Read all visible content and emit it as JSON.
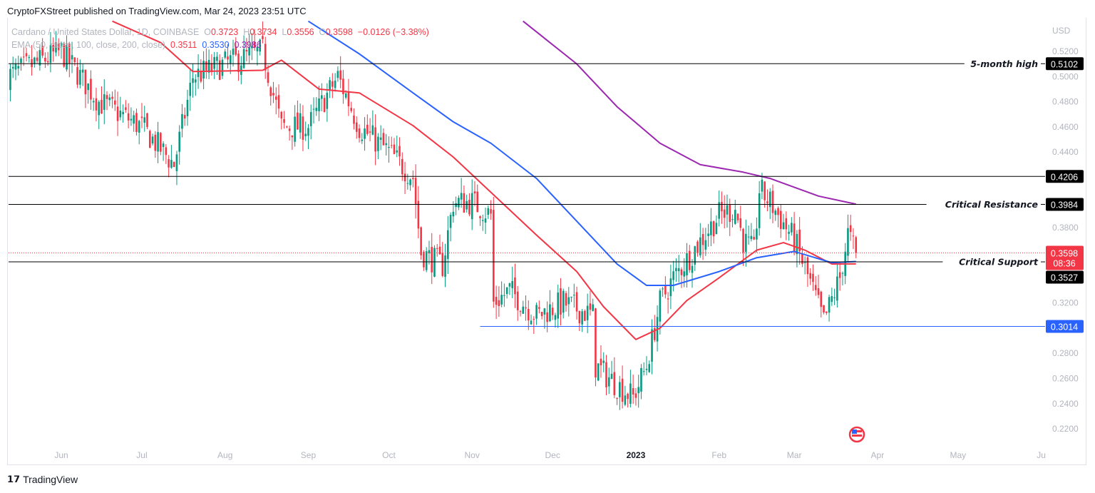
{
  "header": {
    "published": "CryptoFXStreet published on TradingView.com, Mar 24, 2023 23:51 UTC"
  },
  "legend": {
    "symbol": "Cardano / United States Dollar, 1D, COINBASE",
    "o_label": "O",
    "o": "0.3723",
    "h_label": "H",
    "h": "0.3734",
    "l_label": "L",
    "l": "0.3556",
    "c_label": "C",
    "c": "0.3598",
    "change": "−0.0126 (−3.38%)",
    "ema_label": "EMA (50, close, 100, close, 200, close)",
    "ema50": "0.3511",
    "ema100": "0.3530",
    "ema200": "0.3986"
  },
  "footer": {
    "logo": "TradingView"
  },
  "chart_data": {
    "type": "candlestick",
    "currency": "USD",
    "ylim": [
      0.21,
      0.535
    ],
    "y_ticks": [
      "0.5200",
      "0.5000",
      "0.4800",
      "0.4600",
      "0.4400",
      "0.3800",
      "0.3200",
      "0.2800",
      "0.2600",
      "0.2400",
      "0.2200"
    ],
    "x_ticks": [
      {
        "label": "Jun",
        "date": "2022-06-01"
      },
      {
        "label": "Jul",
        "date": "2022-07-01"
      },
      {
        "label": "Aug",
        "date": "2022-08-01"
      },
      {
        "label": "Sep",
        "date": "2022-09-01"
      },
      {
        "label": "Oct",
        "date": "2022-10-01"
      },
      {
        "label": "Nov",
        "date": "2022-11-01"
      },
      {
        "label": "Dec",
        "date": "2022-12-01"
      },
      {
        "label": "2023",
        "date": "2023-01-01"
      },
      {
        "label": "Feb",
        "date": "2023-02-01"
      },
      {
        "label": "Mar",
        "date": "2023-03-01"
      },
      {
        "label": "Apr",
        "date": "2023-04-01"
      },
      {
        "label": "May",
        "date": "2023-05-01"
      },
      {
        "label": "Ju",
        "date": "2023-06-01"
      }
    ],
    "close_path": [
      [
        "2022-05-12",
        0.5
      ],
      [
        "2022-06-01",
        0.52
      ],
      [
        "2022-06-15",
        0.48
      ],
      [
        "2022-07-01",
        0.46
      ],
      [
        "2022-07-13",
        0.43
      ],
      [
        "2022-07-20",
        0.5
      ],
      [
        "2022-08-01",
        0.51
      ],
      [
        "2022-08-15",
        0.52
      ],
      [
        "2022-08-22",
        0.46
      ],
      [
        "2022-09-01",
        0.46
      ],
      [
        "2022-09-12",
        0.5
      ],
      [
        "2022-09-20",
        0.46
      ],
      [
        "2022-10-01",
        0.44
      ],
      [
        "2022-10-10",
        0.42
      ],
      [
        "2022-10-13",
        0.36
      ],
      [
        "2022-10-21",
        0.35
      ],
      [
        "2022-10-25",
        0.4
      ],
      [
        "2022-11-01",
        0.4
      ],
      [
        "2022-11-08",
        0.39
      ],
      [
        "2022-11-09",
        0.32
      ],
      [
        "2022-11-15",
        0.33
      ],
      [
        "2022-11-25",
        0.31
      ],
      [
        "2022-12-05",
        0.32
      ],
      [
        "2022-12-16",
        0.31
      ],
      [
        "2022-12-17",
        0.27
      ],
      [
        "2022-12-25",
        0.255
      ],
      [
        "2022-12-31",
        0.245
      ],
      [
        "2023-01-05",
        0.27
      ],
      [
        "2023-01-10",
        0.32
      ],
      [
        "2023-01-15",
        0.34
      ],
      [
        "2023-01-22",
        0.36
      ],
      [
        "2023-02-01",
        0.39
      ],
      [
        "2023-02-07",
        0.395
      ],
      [
        "2023-02-10",
        0.37
      ],
      [
        "2023-02-14",
        0.36
      ],
      [
        "2023-02-16",
        0.41
      ],
      [
        "2023-02-20",
        0.4
      ],
      [
        "2023-03-01",
        0.37
      ],
      [
        "2023-03-08",
        0.33
      ],
      [
        "2023-03-12",
        0.305
      ],
      [
        "2023-03-18",
        0.34
      ],
      [
        "2023-03-21",
        0.375
      ],
      [
        "2023-03-24",
        0.3598
      ]
    ],
    "series": [
      {
        "name": "EMA 50",
        "color": "#f23645",
        "points": [
          [
            "2022-06-20",
            0.544
          ],
          [
            "2022-07-08",
            0.527
          ],
          [
            "2022-07-20",
            0.504
          ],
          [
            "2022-08-15",
            0.505
          ],
          [
            "2022-08-22",
            0.513
          ],
          [
            "2022-09-05",
            0.49
          ],
          [
            "2022-09-20",
            0.487
          ],
          [
            "2022-10-10",
            0.461
          ],
          [
            "2022-10-25",
            0.436
          ],
          [
            "2022-11-08",
            0.408
          ],
          [
            "2022-11-25",
            0.374
          ],
          [
            "2022-12-10",
            0.345
          ],
          [
            "2022-12-20",
            0.317
          ],
          [
            "2023-01-01",
            0.291
          ],
          [
            "2023-01-10",
            0.3
          ],
          [
            "2023-01-20",
            0.322
          ],
          [
            "2023-02-01",
            0.34
          ],
          [
            "2023-02-15",
            0.362
          ],
          [
            "2023-02-25",
            0.368
          ],
          [
            "2023-03-05",
            0.362
          ],
          [
            "2023-03-15",
            0.351
          ],
          [
            "2023-03-24",
            0.3511
          ]
        ]
      },
      {
        "name": "EMA 100",
        "color": "#2962ff",
        "points": [
          [
            "2022-09-01",
            0.544
          ],
          [
            "2022-09-20",
            0.518
          ],
          [
            "2022-10-10",
            0.487
          ],
          [
            "2022-10-25",
            0.464
          ],
          [
            "2022-11-08",
            0.447
          ],
          [
            "2022-11-25",
            0.419
          ],
          [
            "2022-12-10",
            0.385
          ],
          [
            "2022-12-25",
            0.351
          ],
          [
            "2023-01-05",
            0.334
          ],
          [
            "2023-01-15",
            0.334
          ],
          [
            "2023-02-01",
            0.345
          ],
          [
            "2023-02-15",
            0.356
          ],
          [
            "2023-03-01",
            0.361
          ],
          [
            "2023-03-15",
            0.352
          ],
          [
            "2023-03-24",
            0.353
          ]
        ]
      },
      {
        "name": "EMA 200",
        "color": "#9c27b0",
        "points": [
          [
            "2022-11-20",
            0.544
          ],
          [
            "2022-12-10",
            0.51
          ],
          [
            "2022-12-25",
            0.476
          ],
          [
            "2023-01-10",
            0.447
          ],
          [
            "2023-01-25",
            0.43
          ],
          [
            "2023-02-10",
            0.424
          ],
          [
            "2023-02-20",
            0.419
          ],
          [
            "2023-03-10",
            0.405
          ],
          [
            "2023-03-24",
            0.3986
          ]
        ]
      }
    ],
    "levels": [
      {
        "label": "5-month high",
        "value": "0.5102",
        "color": "#000000"
      },
      {
        "label": "",
        "value": "0.4206",
        "color": "#000000"
      },
      {
        "label": "Critical Resistance",
        "value": "0.3984",
        "color": "#000000"
      },
      {
        "label": "Critical Support",
        "value": "0.3527",
        "color": "#000000"
      },
      {
        "label": "",
        "value": "0.3014",
        "color": "#2962ff",
        "start": "2022-11-04"
      }
    ],
    "current": {
      "price": "0.3598",
      "countdown": "08:36",
      "color": "#f23645"
    },
    "colors": {
      "up": "#089981",
      "down": "#f23645"
    }
  }
}
